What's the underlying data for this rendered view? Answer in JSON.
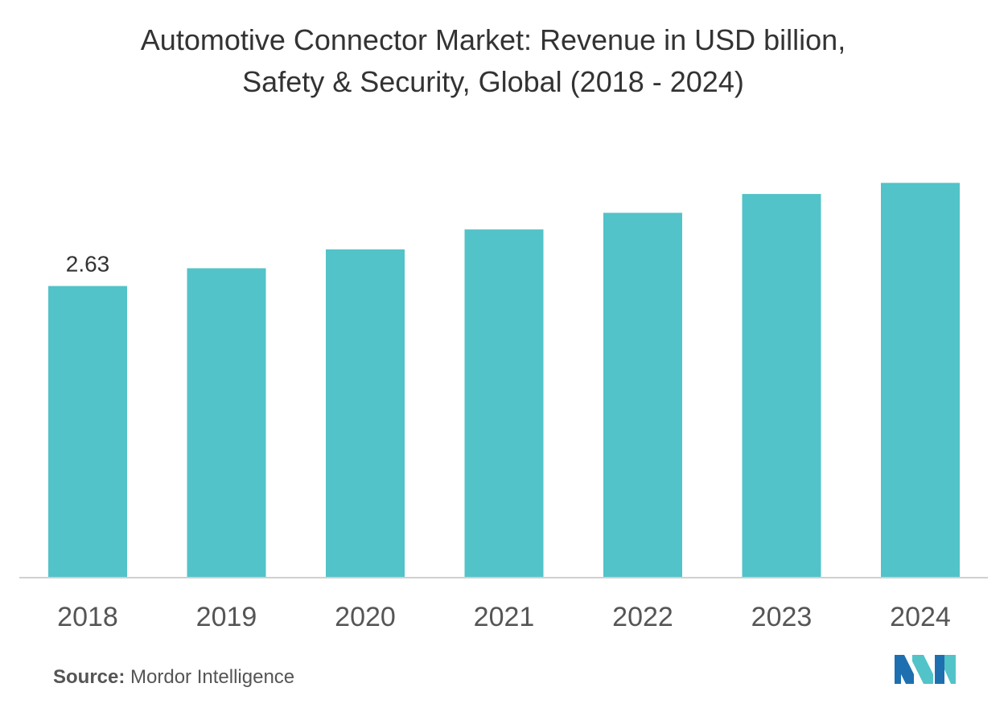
{
  "chart_data": {
    "type": "bar",
    "title": "Automotive Connector Market: Revenue in USD billion,",
    "subtitle": "Safety & Security, Global (2018 - 2024)",
    "categories": [
      "2018",
      "2019",
      "2020",
      "2021",
      "2022",
      "2023",
      "2024"
    ],
    "values": [
      2.63,
      2.79,
      2.96,
      3.14,
      3.29,
      3.46,
      3.56
    ],
    "data_labels": [
      "2.63",
      "",
      "",
      "",
      "",
      "",
      ""
    ],
    "xlabel": "",
    "ylabel": "",
    "ylim": [
      0,
      3.7
    ],
    "grid": false,
    "legend": "none",
    "bar_color": "#52c3c8",
    "axis_color": "#d0d0d0"
  },
  "source": {
    "label": "Source:",
    "text": "Mordor Intelligence"
  },
  "logo": {
    "icon": "mordor-intelligence-logo",
    "colors": [
      "#1e6fb0",
      "#52c3c8"
    ]
  }
}
